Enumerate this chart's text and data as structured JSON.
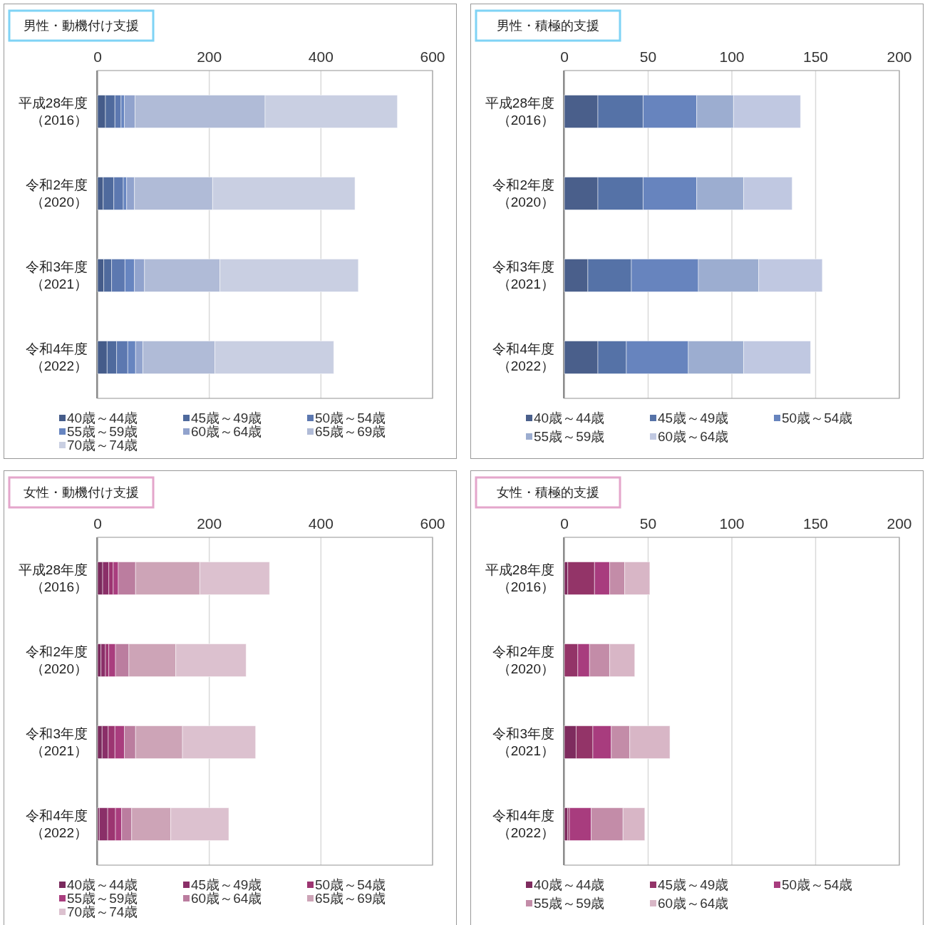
{
  "chart_data": [
    {
      "type": "bar",
      "orientation": "horizontal",
      "stacked": true,
      "title": "男性・動機付け支援",
      "categories": [
        "平成28年度（2016）",
        "令和2年度（2020）",
        "令和3年度（2021）",
        "令和4年度（2022）"
      ],
      "xlim": [
        0,
        600
      ],
      "xticks": [
        0,
        200,
        400,
        600
      ],
      "grid": "x",
      "legend": "bottom",
      "series": [
        {
          "name": "40歳～44歳",
          "color": "#455c8a",
          "values": [
            14,
            10,
            11,
            17
          ]
        },
        {
          "name": "45歳～49歳",
          "color": "#4f6a9d",
          "values": [
            17,
            19,
            14,
            17
          ]
        },
        {
          "name": "50歳～54歳",
          "color": "#5c78b0",
          "values": [
            11,
            17,
            24,
            20
          ]
        },
        {
          "name": "55歳～59歳",
          "color": "#6785c0",
          "values": [
            6,
            6,
            17,
            14
          ]
        },
        {
          "name": "60歳～64歳",
          "color": "#91a3cd",
          "values": [
            19,
            14,
            18,
            13
          ]
        },
        {
          "name": "65歳～69歳",
          "color": "#b0bbd7",
          "values": [
            233,
            140,
            135,
            129
          ]
        },
        {
          "name": "70歳～74歳",
          "color": "#c9cfe2",
          "values": [
            237,
            255,
            248,
            213
          ]
        }
      ]
    },
    {
      "type": "bar",
      "orientation": "horizontal",
      "stacked": true,
      "title": "男性・積極的支援",
      "categories": [
        "平成28年度（2016）",
        "令和2年度（2020）",
        "令和3年度（2021）",
        "令和4年度（2022）"
      ],
      "xlim": [
        0,
        200
      ],
      "xticks": [
        0,
        50,
        100,
        150,
        200
      ],
      "grid": "x",
      "legend": "bottom",
      "series": [
        {
          "name": "40歳～44歳",
          "color": "#4a5f8b",
          "values": [
            20,
            20,
            14,
            20
          ]
        },
        {
          "name": "45歳～49歳",
          "color": "#5572a7",
          "values": [
            27,
            27,
            26,
            17
          ]
        },
        {
          "name": "50歳～54歳",
          "color": "#6784be",
          "values": [
            32,
            32,
            40,
            37
          ]
        },
        {
          "name": "55歳～59歳",
          "color": "#9cadd0",
          "values": [
            22,
            28,
            36,
            33
          ]
        },
        {
          "name": "60歳～64歳",
          "color": "#c0c8e1",
          "values": [
            40,
            29,
            38,
            40
          ]
        }
      ]
    },
    {
      "type": "bar",
      "orientation": "horizontal",
      "stacked": true,
      "title": "女性・動機付け支援",
      "categories": [
        "平成28年度（2016）",
        "令和2年度（2020）",
        "令和3年度（2021）",
        "令和4年度（2022）"
      ],
      "xlim": [
        0,
        600
      ],
      "xticks": [
        0,
        200,
        400,
        600
      ],
      "grid": "x",
      "legend": "bottom",
      "series": [
        {
          "name": "40歳～44歳",
          "color": "#7a2a5d",
          "values": [
            9,
            6,
            8,
            3
          ]
        },
        {
          "name": "45歳～49歳",
          "color": "#8a2f68",
          "values": [
            11,
            8,
            11,
            15
          ]
        },
        {
          "name": "50歳～54歳",
          "color": "#9c3571",
          "values": [
            8,
            6,
            12,
            14
          ]
        },
        {
          "name": "55歳～59歳",
          "color": "#a93d7e",
          "values": [
            9,
            12,
            17,
            11
          ]
        },
        {
          "name": "60歳～64歳",
          "color": "#bb7d9f",
          "values": [
            31,
            24,
            20,
            18
          ]
        },
        {
          "name": "65歳～69歳",
          "color": "#cda4b7",
          "values": [
            115,
            84,
            84,
            70
          ]
        },
        {
          "name": "70歳～74歳",
          "color": "#dcc1cf",
          "values": [
            125,
            126,
            131,
            104
          ]
        }
      ]
    },
    {
      "type": "bar",
      "orientation": "horizontal",
      "stacked": true,
      "title": "女性・積極的支援",
      "categories": [
        "平成28年度（2016）",
        "令和2年度（2020）",
        "令和3年度（2021）",
        "令和4年度（2022）"
      ],
      "xlim": [
        0,
        200
      ],
      "xticks": [
        0,
        50,
        100,
        150,
        200
      ],
      "grid": "x",
      "legend": "bottom",
      "series": [
        {
          "name": "40歳～44歳",
          "color": "#7e2b5e",
          "values": [
            2,
            0,
            7,
            2
          ]
        },
        {
          "name": "45歳～49歳",
          "color": "#933468",
          "values": [
            16,
            8,
            10,
            1
          ]
        },
        {
          "name": "50歳～54歳",
          "color": "#a83c7e",
          "values": [
            9,
            7,
            11,
            13
          ]
        },
        {
          "name": "55歳～59歳",
          "color": "#c38ca8",
          "values": [
            9,
            12,
            11,
            19
          ]
        },
        {
          "name": "60歳～64歳",
          "color": "#d8b6c6",
          "values": [
            15,
            15,
            24,
            13
          ]
        }
      ]
    }
  ]
}
